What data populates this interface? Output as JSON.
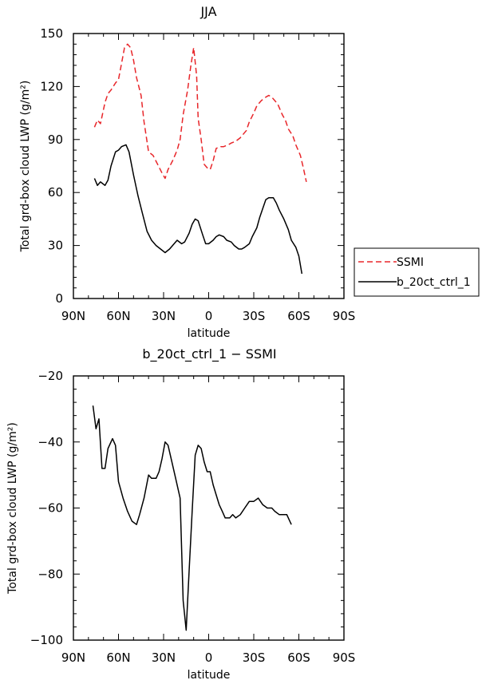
{
  "chart_data": [
    {
      "type": "line",
      "title": "JJA",
      "xlabel": "latitude",
      "ylabel": "Total grd-box cloud LWP (g/m²)",
      "xlim": [
        90,
        -90
      ],
      "ylim": [
        0,
        150
      ],
      "x_ticks": [
        90,
        60,
        30,
        0,
        -30,
        -60,
        -90
      ],
      "x_tick_labels": [
        "90N",
        "60N",
        "30N",
        "0",
        "30S",
        "60S",
        "90S"
      ],
      "y_ticks": [
        0,
        30,
        60,
        90,
        120,
        150
      ],
      "y_tick_labels": [
        "0",
        "30",
        "60",
        "90",
        "120",
        "150"
      ],
      "legend_placement": "outside-right",
      "series": [
        {
          "name": "SSMI",
          "color": "#e8262a",
          "dash": "dashed",
          "points": [
            [
              76,
              97
            ],
            [
              74,
              101
            ],
            [
              72,
              99
            ],
            [
              69,
              111
            ],
            [
              67,
              116
            ],
            [
              65,
              118
            ],
            [
              62,
              122
            ],
            [
              60,
              124
            ],
            [
              58,
              133
            ],
            [
              56,
              142
            ],
            [
              54,
              144
            ],
            [
              52,
              142
            ],
            [
              50,
              135
            ],
            [
              48,
              125
            ],
            [
              45,
              115
            ],
            [
              43,
              100
            ],
            [
              40,
              83
            ],
            [
              37,
              81
            ],
            [
              34,
              76
            ],
            [
              31,
              71
            ],
            [
              29,
              68
            ],
            [
              27,
              73
            ],
            [
              24,
              78
            ],
            [
              21,
              84
            ],
            [
              19,
              90
            ],
            [
              17,
              104
            ],
            [
              14,
              118
            ],
            [
              12,
              131
            ],
            [
              10,
              142
            ],
            [
              8,
              126
            ],
            [
              7,
              102
            ],
            [
              5,
              90
            ],
            [
              3,
              76
            ],
            [
              1,
              74
            ],
            [
              -1,
              73
            ],
            [
              -3,
              78
            ],
            [
              -5,
              85
            ],
            [
              -8,
              86
            ],
            [
              -10,
              86
            ],
            [
              -13,
              87
            ],
            [
              -15,
              88
            ],
            [
              -18,
              89
            ],
            [
              -21,
              91
            ],
            [
              -23,
              93
            ],
            [
              -25,
              95
            ],
            [
              -27,
              100
            ],
            [
              -30,
              105
            ],
            [
              -32,
              109
            ],
            [
              -35,
              112
            ],
            [
              -38,
              114
            ],
            [
              -40,
              115
            ],
            [
              -42,
              114
            ],
            [
              -44,
              112
            ],
            [
              -46,
              110
            ],
            [
              -49,
              104
            ],
            [
              -51,
              101
            ],
            [
              -53,
              96
            ],
            [
              -56,
              92
            ],
            [
              -58,
              87
            ],
            [
              -61,
              81
            ],
            [
              -63,
              74
            ],
            [
              -65,
              66
            ]
          ]
        },
        {
          "name": "b_20ct_ctrl_1",
          "color": "#000000",
          "dash": "solid",
          "points": [
            [
              76,
              68
            ],
            [
              74,
              64
            ],
            [
              72,
              66
            ],
            [
              69,
              64
            ],
            [
              67,
              67
            ],
            [
              65,
              75
            ],
            [
              62,
              83
            ],
            [
              60,
              84
            ],
            [
              58,
              86
            ],
            [
              55,
              87
            ],
            [
              53,
              83
            ],
            [
              50,
              70
            ],
            [
              47,
              58
            ],
            [
              44,
              48
            ],
            [
              41,
              38
            ],
            [
              38,
              33
            ],
            [
              35,
              30
            ],
            [
              32,
              28
            ],
            [
              29,
              26
            ],
            [
              26,
              28
            ],
            [
              23,
              31
            ],
            [
              21,
              33
            ],
            [
              18,
              31
            ],
            [
              16,
              32
            ],
            [
              13,
              37
            ],
            [
              11,
              42
            ],
            [
              9,
              45
            ],
            [
              7,
              44
            ],
            [
              4,
              36
            ],
            [
              2,
              31
            ],
            [
              0,
              31
            ],
            [
              -3,
              33
            ],
            [
              -5,
              35
            ],
            [
              -7,
              36
            ],
            [
              -10,
              35
            ],
            [
              -12,
              33
            ],
            [
              -15,
              32
            ],
            [
              -17,
              30
            ],
            [
              -20,
              28
            ],
            [
              -22,
              28
            ],
            [
              -24,
              29
            ],
            [
              -27,
              31
            ],
            [
              -29,
              35
            ],
            [
              -32,
              40
            ],
            [
              -34,
              46
            ],
            [
              -36,
              51
            ],
            [
              -38,
              56
            ],
            [
              -40,
              57
            ],
            [
              -43,
              57
            ],
            [
              -45,
              54
            ],
            [
              -47,
              50
            ],
            [
              -50,
              45
            ],
            [
              -53,
              39
            ],
            [
              -55,
              33
            ],
            [
              -58,
              29
            ],
            [
              -60,
              24
            ],
            [
              -62,
              14
            ]
          ]
        }
      ]
    },
    {
      "type": "line",
      "title": "b_20ct_ctrl_1  −  SSMI",
      "xlabel": "latitude",
      "ylabel": "Total grd-box cloud LWP (g/m²)",
      "xlim": [
        90,
        -90
      ],
      "ylim": [
        -100,
        -20
      ],
      "x_ticks": [
        90,
        60,
        30,
        0,
        -30,
        -60,
        -90
      ],
      "x_tick_labels": [
        "90N",
        "60N",
        "30N",
        "0",
        "30S",
        "60S",
        "90S"
      ],
      "y_ticks": [
        -100,
        -80,
        -60,
        -40,
        -20
      ],
      "y_tick_labels": [
        "−100",
        "−80",
        "−60",
        "−40",
        "−20"
      ],
      "series": [
        {
          "color": "#000000",
          "dash": "solid",
          "points": [
            [
              77,
              -29
            ],
            [
              75,
              -36
            ],
            [
              73,
              -33
            ],
            [
              71,
              -48
            ],
            [
              69,
              -48
            ],
            [
              67,
              -42
            ],
            [
              64,
              -39
            ],
            [
              62,
              -41
            ],
            [
              60,
              -52
            ],
            [
              57,
              -57
            ],
            [
              54,
              -61
            ],
            [
              51,
              -64
            ],
            [
              48,
              -65
            ],
            [
              46,
              -62
            ],
            [
              43,
              -57
            ],
            [
              40,
              -50
            ],
            [
              38,
              -51
            ],
            [
              35,
              -51
            ],
            [
              33,
              -49
            ],
            [
              31,
              -45
            ],
            [
              29,
              -40
            ],
            [
              27,
              -41
            ],
            [
              25,
              -45
            ],
            [
              22,
              -51
            ],
            [
              19,
              -57
            ],
            [
              17,
              -88
            ],
            [
              15,
              -97
            ],
            [
              13,
              -79
            ],
            [
              11,
              -61
            ],
            [
              9,
              -44
            ],
            [
              7,
              -41
            ],
            [
              5,
              -42
            ],
            [
              3,
              -46
            ],
            [
              1,
              -49
            ],
            [
              -1,
              -49
            ],
            [
              -3,
              -53
            ],
            [
              -5,
              -56
            ],
            [
              -7,
              -59
            ],
            [
              -9,
              -61
            ],
            [
              -11,
              -63
            ],
            [
              -14,
              -63
            ],
            [
              -16,
              -62
            ],
            [
              -18,
              -63
            ],
            [
              -21,
              -62
            ],
            [
              -24,
              -60
            ],
            [
              -27,
              -58
            ],
            [
              -30,
              -58
            ],
            [
              -33,
              -57
            ],
            [
              -36,
              -59
            ],
            [
              -39,
              -60
            ],
            [
              -42,
              -60
            ],
            [
              -44,
              -61
            ],
            [
              -47,
              -62
            ],
            [
              -50,
              -62
            ],
            [
              -52,
              -62
            ],
            [
              -55,
              -65
            ]
          ]
        }
      ]
    }
  ]
}
